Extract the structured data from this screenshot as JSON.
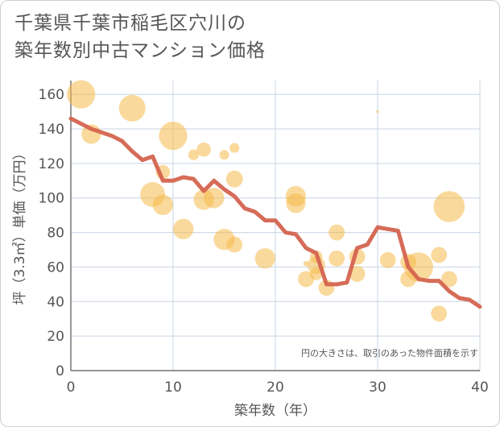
{
  "title_lines": [
    "千葉県千葉市稲毛区穴川の",
    "築年数別中古マンション価格"
  ],
  "colors": {
    "bubble": "#f5b94a",
    "line": "#d4644f",
    "grid": "#c8d4e3",
    "axis": "#555555"
  },
  "chart_data": {
    "type": "scatter",
    "title": "千葉県千葉市稲毛区穴川の築年数別中古マンション価格",
    "xlabel": "築年数（年）",
    "ylabel": "坪（3.3㎡）単価（万円）",
    "xlim": [
      0,
      40
    ],
    "ylim": [
      0,
      168
    ],
    "x_ticks": [
      0,
      10,
      20,
      30,
      40
    ],
    "y_ticks": [
      0,
      20,
      40,
      60,
      80,
      100,
      120,
      140,
      160
    ],
    "grid": true,
    "annotation": "円の大きさは、取引のあった物件面積を示す",
    "bubbles": [
      {
        "x": 1,
        "y": 160,
        "size": 3.2
      },
      {
        "x": 2,
        "y": 137,
        "size": 2.2
      },
      {
        "x": 6,
        "y": 152,
        "size": 3.0
      },
      {
        "x": 8,
        "y": 102,
        "size": 2.8
      },
      {
        "x": 9,
        "y": 96,
        "size": 2.3
      },
      {
        "x": 9,
        "y": 115,
        "size": 1.6
      },
      {
        "x": 10,
        "y": 136,
        "size": 3.2
      },
      {
        "x": 11,
        "y": 82,
        "size": 2.3
      },
      {
        "x": 12,
        "y": 125,
        "size": 1.2
      },
      {
        "x": 13,
        "y": 128,
        "size": 1.6
      },
      {
        "x": 13,
        "y": 99,
        "size": 2.3
      },
      {
        "x": 14,
        "y": 100,
        "size": 2.3
      },
      {
        "x": 15,
        "y": 125,
        "size": 1.1
      },
      {
        "x": 15,
        "y": 76,
        "size": 2.4
      },
      {
        "x": 16,
        "y": 129,
        "size": 1.1
      },
      {
        "x": 16,
        "y": 111,
        "size": 1.9
      },
      {
        "x": 16,
        "y": 73,
        "size": 1.8
      },
      {
        "x": 19,
        "y": 65,
        "size": 2.3
      },
      {
        "x": 22,
        "y": 101,
        "size": 2.3
      },
      {
        "x": 22,
        "y": 97,
        "size": 2.2
      },
      {
        "x": 23,
        "y": 62,
        "size": 0.6
      },
      {
        "x": 23,
        "y": 53,
        "size": 1.8
      },
      {
        "x": 24,
        "y": 66,
        "size": 1.4
      },
      {
        "x": 24,
        "y": 61,
        "size": 2.0
      },
      {
        "x": 24,
        "y": 56,
        "size": 1.4
      },
      {
        "x": 25,
        "y": 48,
        "size": 1.8
      },
      {
        "x": 26,
        "y": 80,
        "size": 1.8
      },
      {
        "x": 26,
        "y": 65,
        "size": 1.8
      },
      {
        "x": 28,
        "y": 66,
        "size": 1.8
      },
      {
        "x": 28,
        "y": 56,
        "size": 1.8
      },
      {
        "x": 30,
        "y": 150,
        "size": 0.3
      },
      {
        "x": 31,
        "y": 64,
        "size": 1.8
      },
      {
        "x": 33,
        "y": 63,
        "size": 1.8
      },
      {
        "x": 33,
        "y": 53,
        "size": 1.8
      },
      {
        "x": 34,
        "y": 60,
        "size": 3.3
      },
      {
        "x": 36,
        "y": 67,
        "size": 1.8
      },
      {
        "x": 36,
        "y": 33,
        "size": 1.8
      },
      {
        "x": 37,
        "y": 95,
        "size": 3.5
      },
      {
        "x": 37,
        "y": 53,
        "size": 1.8
      }
    ],
    "series": [
      {
        "x": [
          0,
          1,
          2,
          3,
          4,
          5,
          6,
          7,
          8,
          9,
          10,
          11,
          12,
          13,
          14,
          15,
          16,
          17,
          18,
          19,
          20,
          21,
          22,
          23,
          24,
          25,
          26,
          27,
          28,
          29,
          30,
          31,
          32,
          33,
          34,
          35,
          36,
          37,
          38,
          39,
          40
        ],
        "values": [
          146,
          143,
          140,
          138,
          136,
          133,
          127,
          122,
          124,
          110,
          110,
          112,
          111,
          104,
          110,
          105,
          101,
          94,
          92,
          87,
          87,
          80,
          79,
          71,
          68,
          50,
          50,
          51,
          71,
          73,
          83,
          82,
          81,
          60,
          53,
          52,
          52,
          46,
          42,
          41,
          37
        ]
      }
    ]
  }
}
